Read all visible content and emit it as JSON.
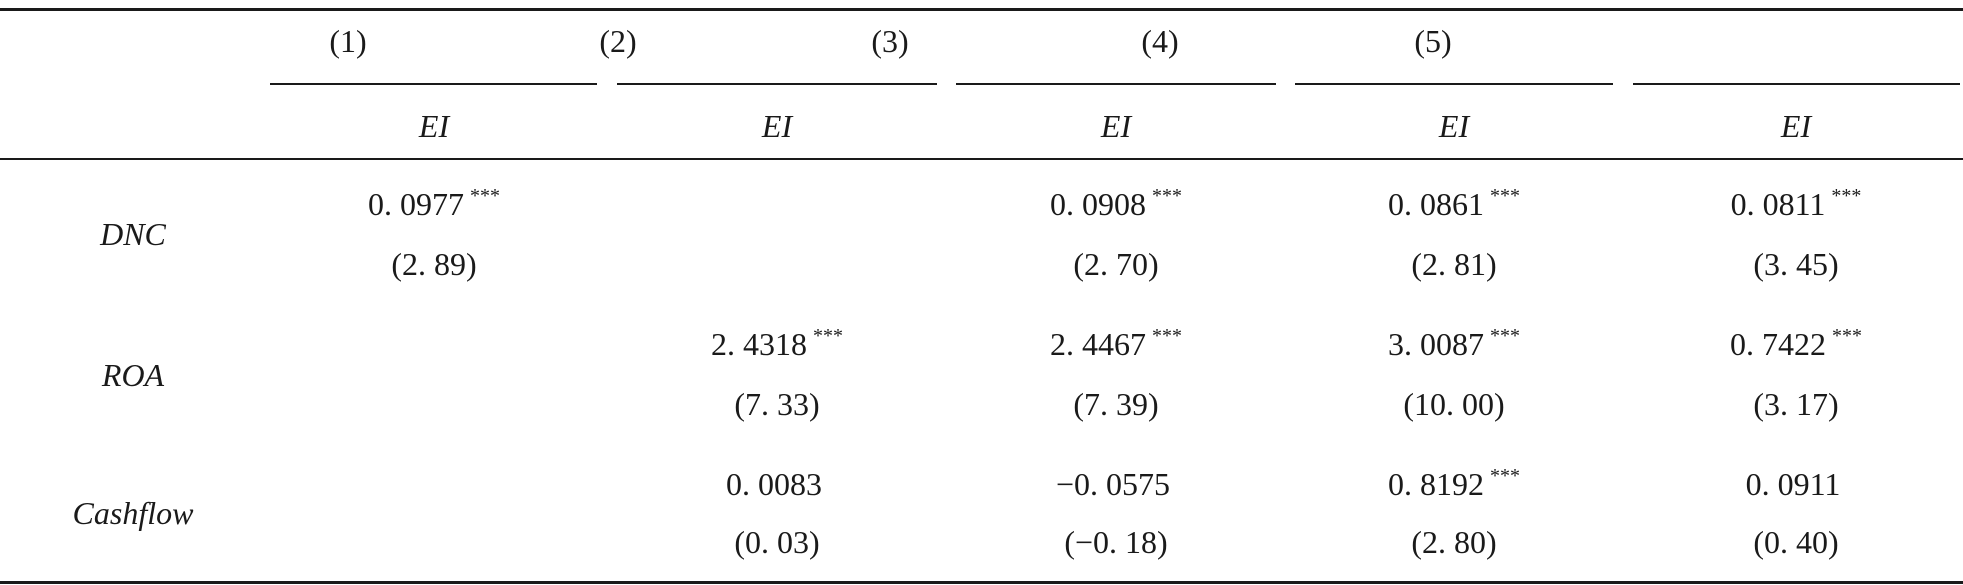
{
  "table": {
    "column_numbers": [
      "(1)",
      "(2)",
      "(3)",
      "(4)",
      "(5)"
    ],
    "dependent_vars": [
      "EI",
      "EI",
      "EI",
      "EI",
      "EI"
    ],
    "rows": [
      {
        "label": "DNC",
        "cells": [
          {
            "coef": "0. 0977",
            "stars": "***",
            "t": "(2. 89)"
          },
          {
            "coef": "",
            "stars": "",
            "t": ""
          },
          {
            "coef": "0. 0908",
            "stars": "***",
            "t": "(2. 70)"
          },
          {
            "coef": "0. 0861",
            "stars": "***",
            "t": "(2. 81)"
          },
          {
            "coef": "0. 0811",
            "stars": "***",
            "t": "(3. 45)"
          }
        ]
      },
      {
        "label": "ROA",
        "cells": [
          {
            "coef": "",
            "stars": "",
            "t": ""
          },
          {
            "coef": "2. 4318",
            "stars": "***",
            "t": "(7. 33)"
          },
          {
            "coef": "2. 4467",
            "stars": "***",
            "t": "(7. 39)"
          },
          {
            "coef": "3. 0087",
            "stars": "***",
            "t": "(10. 00)"
          },
          {
            "coef": "0. 7422",
            "stars": "***",
            "t": "(3. 17)"
          }
        ]
      },
      {
        "label": "Cashflow",
        "cells": [
          {
            "coef": "",
            "stars": "",
            "t": ""
          },
          {
            "coef": "0. 0083",
            "stars": "",
            "t": "(0. 03)"
          },
          {
            "coef": "−0. 0575",
            "stars": "",
            "t": "(−0. 18)"
          },
          {
            "coef": "0. 8192",
            "stars": "***",
            "t": "(2. 80)"
          },
          {
            "coef": "0. 0911",
            "stars": "",
            "t": "(0. 40)"
          }
        ]
      }
    ]
  }
}
